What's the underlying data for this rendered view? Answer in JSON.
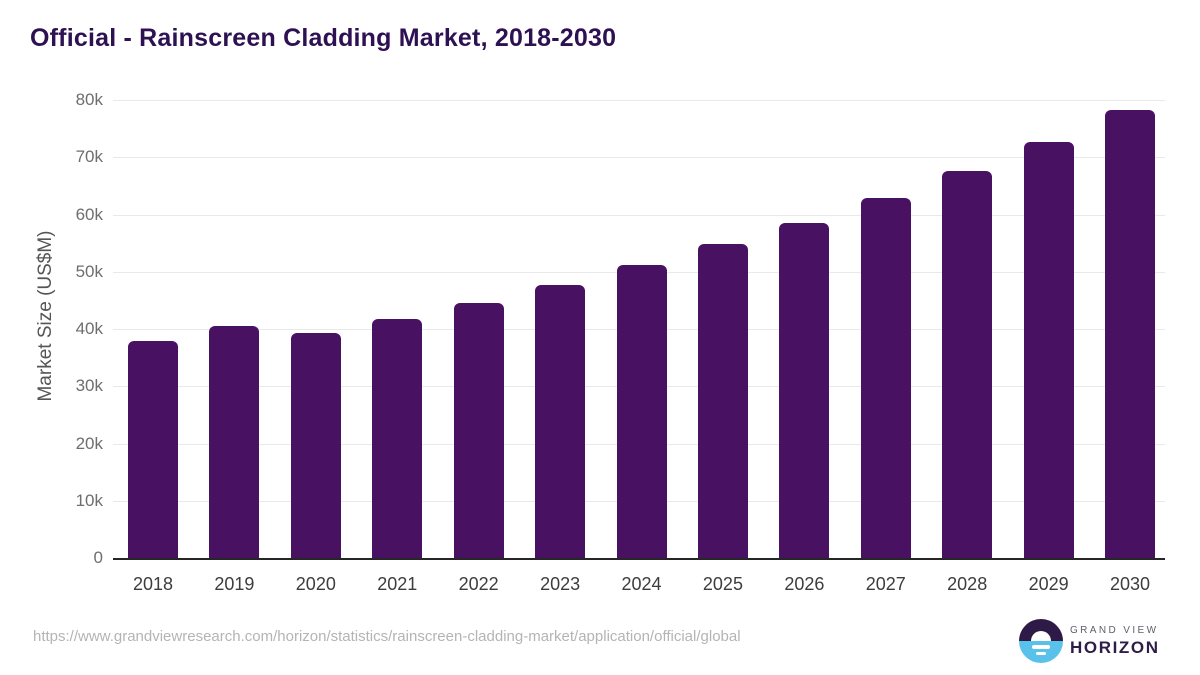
{
  "page": {
    "title": "Official - Rainscreen Cladding Market, 2018-2030"
  },
  "chart_data": {
    "type": "bar",
    "title": "Official - Rainscreen Cladding Market, 2018-2030",
    "categories": [
      "2018",
      "2019",
      "2020",
      "2021",
      "2022",
      "2023",
      "2024",
      "2025",
      "2026",
      "2027",
      "2028",
      "2029",
      "2030"
    ],
    "values": [
      37900,
      40600,
      39300,
      41800,
      44600,
      47600,
      51100,
      54800,
      58600,
      62900,
      67600,
      72600,
      78200
    ],
    "xlabel": "",
    "ylabel": "Market Size (US$M)",
    "ylim": [
      0,
      80000
    ],
    "yticks": [
      {
        "value": 0,
        "label": "0"
      },
      {
        "value": 10000,
        "label": "10k"
      },
      {
        "value": 20000,
        "label": "20k"
      },
      {
        "value": 30000,
        "label": "30k"
      },
      {
        "value": 40000,
        "label": "40k"
      },
      {
        "value": 50000,
        "label": "50k"
      },
      {
        "value": 60000,
        "label": "60k"
      },
      {
        "value": 70000,
        "label": "70k"
      },
      {
        "value": 80000,
        "label": "80k"
      }
    ],
    "grid": true,
    "legend_position": "none",
    "bar_color": "#491161"
  },
  "footer": {
    "source_url": "https://www.grandviewresearch.com/horizon/statistics/rainscreen-cladding-market/application/official/global",
    "logo": {
      "brand_top": "GRAND VIEW",
      "brand_bottom": "HORIZON"
    }
  },
  "colors": {
    "title": "#2e1152",
    "bar": "#491161",
    "gridline": "#e9e9e9",
    "axis_line": "#262626",
    "y_tick_label": "#6e6e6e",
    "x_tick_label": "#3d3d3d",
    "y_axis_title": "#555555",
    "url_text": "#b4b4b4",
    "logo_dark": "#2e1a47",
    "logo_blue": "#5ac2ea"
  }
}
